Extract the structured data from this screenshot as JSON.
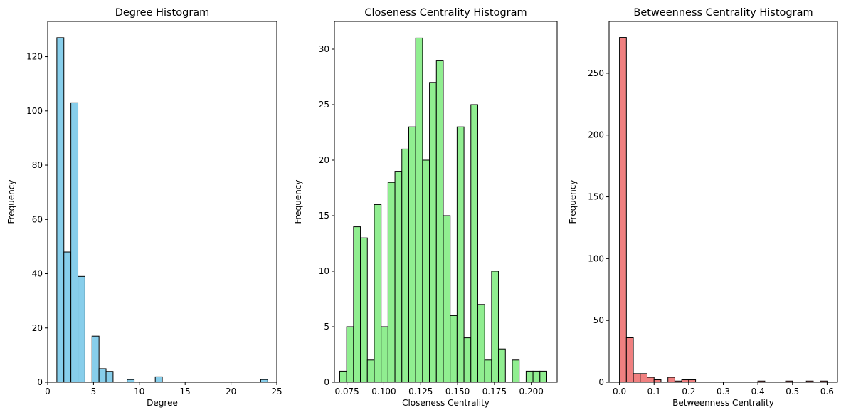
{
  "chart_data": [
    {
      "type": "bar",
      "title": "Degree Histogram",
      "xlabel": "Degree",
      "ylabel": "Frequency",
      "color": "#87ceeb",
      "xlim": [
        0,
        25
      ],
      "ylim": [
        0,
        133
      ],
      "xticks": [
        0,
        5,
        10,
        15,
        20,
        25
      ],
      "yticks": [
        0,
        20,
        40,
        60,
        80,
        100,
        120
      ],
      "bin_start": 1,
      "bin_width": 0.767,
      "values": [
        127,
        48,
        103,
        39,
        0,
        17,
        5,
        4,
        0,
        0,
        1,
        0,
        0,
        0,
        2,
        0,
        0,
        0,
        0,
        0,
        0,
        0,
        0,
        0,
        0,
        0,
        0,
        0,
        0,
        1
      ]
    },
    {
      "type": "bar",
      "title": "Closeness Centrality Histogram",
      "xlabel": "Closeness Centrality",
      "ylabel": "Frequency",
      "color": "#90ee90",
      "xlim": [
        0.0665,
        0.2175
      ],
      "ylim": [
        0,
        32.5
      ],
      "xticks": [
        0.075,
        0.1,
        0.125,
        0.15,
        0.175,
        0.2
      ],
      "xtick_labels": [
        "0.075",
        "0.100",
        "0.125",
        "0.150",
        "0.175",
        "0.200"
      ],
      "yticks": [
        0,
        5,
        10,
        15,
        20,
        25,
        30
      ],
      "bin_start": 0.0701,
      "bin_width": 0.00468,
      "values": [
        1,
        5,
        14,
        13,
        2,
        16,
        5,
        18,
        19,
        21,
        23,
        31,
        20,
        27,
        29,
        15,
        6,
        23,
        4,
        25,
        7,
        2,
        10,
        3,
        0,
        2,
        0,
        1,
        1,
        1
      ]
    },
    {
      "type": "bar",
      "title": "Betweenness Centrality Histogram",
      "xlabel": "Betweenness Centrality",
      "ylabel": "Frequency",
      "color": "#f08080",
      "xlim": [
        -0.03,
        0.63
      ],
      "ylim": [
        0,
        292
      ],
      "xticks": [
        0.0,
        0.1,
        0.2,
        0.3,
        0.4,
        0.5,
        0.6
      ],
      "xtick_labels": [
        "0.0",
        "0.1",
        "0.2",
        "0.3",
        "0.4",
        "0.5",
        "0.6"
      ],
      "yticks": [
        0,
        50,
        100,
        150,
        200,
        250
      ],
      "bin_start": 0,
      "bin_width": 0.02,
      "values": [
        279,
        36,
        7,
        7,
        4,
        2,
        0,
        4,
        1,
        2,
        2,
        0,
        0,
        0,
        0,
        0,
        0,
        0,
        0,
        0,
        1,
        0,
        0,
        0,
        1,
        0,
        0,
        1,
        0,
        1
      ]
    }
  ]
}
